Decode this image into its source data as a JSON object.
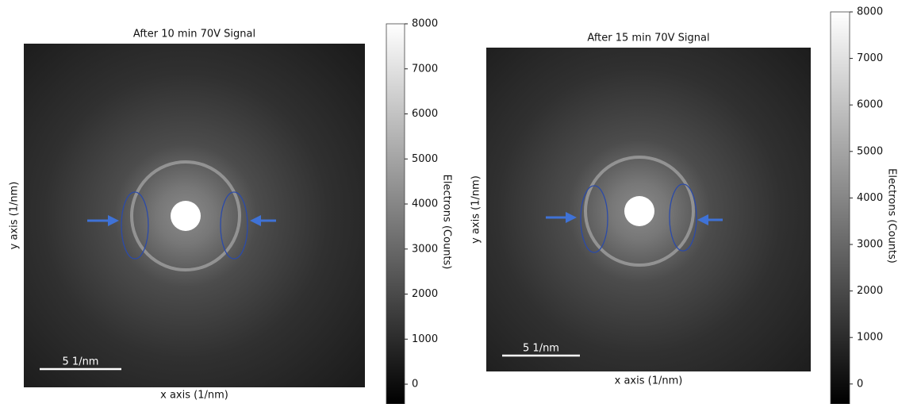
{
  "chart_data": [
    {
      "type": "image",
      "title": "After 10 min 70V Signal",
      "x_label": "x axis (1/nm)",
      "y_label": "y axis (1/nm)",
      "scale_bar_label": "5 1/nm",
      "colorbar_label": "Electrons (Counts)",
      "cmap": "gray",
      "clim": [
        -440,
        8000
      ],
      "cticks": [
        0,
        1000,
        2000,
        3000,
        4000,
        5000,
        6000,
        7000,
        8000
      ]
    },
    {
      "type": "image",
      "title": "After 15 min 70V Signal",
      "x_label": "x axis (1/nm)",
      "y_label": "y axis (1/nm)",
      "scale_bar_label": "5 1/nm",
      "colorbar_label": "Electrons (Counts)",
      "cmap": "gray",
      "clim": [
        -430,
        8000
      ],
      "cticks": [
        0,
        1000,
        2000,
        3000,
        4000,
        5000,
        6000,
        7000,
        8000
      ]
    }
  ]
}
